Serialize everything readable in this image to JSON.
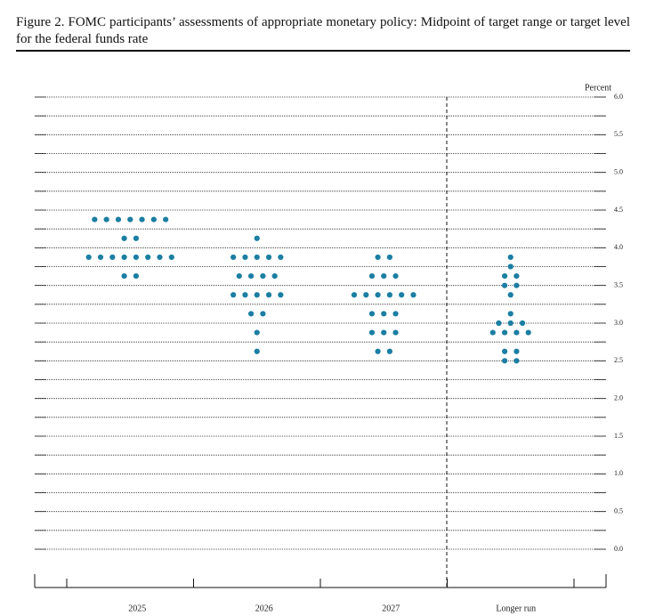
{
  "chart_data": {
    "type": "dot",
    "title": "Figure 2.  FOMC participants’ assessments of appropriate monetary policy: Midpoint of target range or target level for the federal funds rate",
    "y_label": "Percent",
    "categories": [
      "2025",
      "2026",
      "2027",
      "Longer run"
    ],
    "values": [
      [
        4.375,
        4.375,
        4.375,
        4.375,
        4.375,
        4.375,
        4.375,
        4.125,
        4.125,
        3.875,
        3.875,
        3.875,
        3.875,
        3.875,
        3.875,
        3.875,
        3.875,
        3.625,
        3.625
      ],
      [
        4.125,
        3.875,
        3.875,
        3.875,
        3.875,
        3.875,
        3.625,
        3.625,
        3.625,
        3.625,
        3.375,
        3.375,
        3.375,
        3.375,
        3.375,
        3.125,
        3.125,
        2.875,
        2.625
      ],
      [
        3.875,
        3.875,
        3.625,
        3.625,
        3.625,
        3.375,
        3.375,
        3.375,
        3.375,
        3.375,
        3.375,
        3.125,
        3.125,
        3.125,
        2.875,
        2.875,
        2.875,
        2.625,
        2.625
      ],
      [
        3.875,
        3.75,
        3.625,
        3.625,
        3.5,
        3.5,
        3.375,
        3.125,
        3,
        3,
        3,
        2.875,
        2.875,
        2.875,
        2.875,
        2.625,
        2.625,
        2.5,
        2.5
      ]
    ],
    "color": "#1b7ea3",
    "ylim": [
      0,
      6
    ],
    "yticks": [
      {
        "value": 0,
        "label": "0.0"
      },
      {
        "value": 0.5,
        "label": "0.5"
      },
      {
        "value": 1,
        "label": "1.0"
      },
      {
        "value": 1.5,
        "label": "1.5"
      },
      {
        "value": 2,
        "label": "2.0"
      },
      {
        "value": 2.5,
        "label": "2.5"
      },
      {
        "value": 3,
        "label": "3.0"
      },
      {
        "value": 3.5,
        "label": "3.5"
      },
      {
        "value": 4,
        "label": "4.0"
      },
      {
        "value": 4.5,
        "label": "4.5"
      },
      {
        "value": 5,
        "label": "5.0"
      },
      {
        "value": 5.5,
        "label": "5.5"
      },
      {
        "value": 6,
        "label": "6.0"
      }
    ],
    "minor_yticks": [
      0.25,
      0.75,
      1.25,
      1.75,
      2.25,
      2.75,
      3.25,
      3.75,
      4.25,
      4.75,
      5.25,
      5.75
    ],
    "grid": true
  }
}
